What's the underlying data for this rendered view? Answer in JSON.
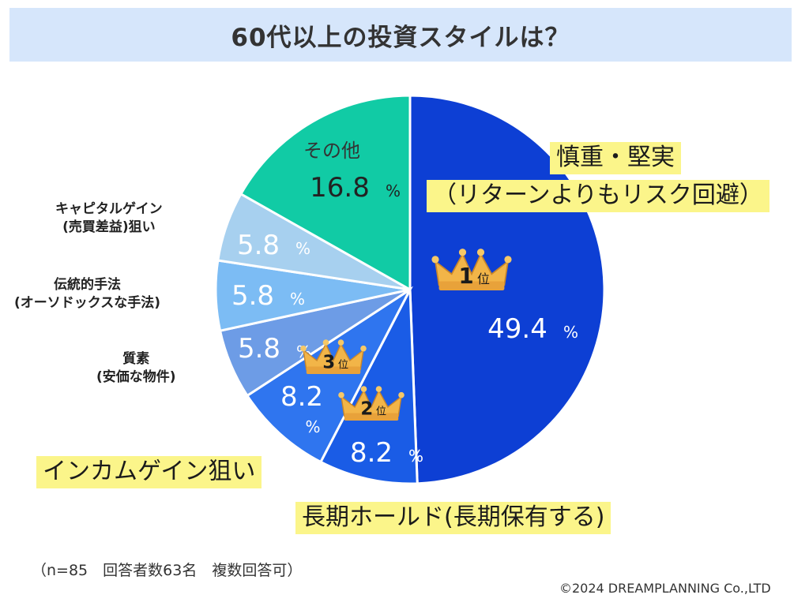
{
  "title": "60代以上の投資スタイルは？",
  "chart_data": {
    "type": "pie",
    "title": "60代以上の投資スタイルは？",
    "unit": "%",
    "slices": [
      {
        "label": "慎重・堅実（リターンよりもリスク回避）",
        "value": 49.4,
        "value_text": "49.4",
        "color": "#0d3fd4",
        "rank": "1"
      },
      {
        "label": "長期ホールド(長期保有する)",
        "value": 8.2,
        "value_text": "8.2",
        "color": "#1a5ce6",
        "rank": "2"
      },
      {
        "label": "インカムゲイン狙い",
        "value": 8.2,
        "value_text": "8.2",
        "color": "#2f75ef",
        "rank": "3"
      },
      {
        "label": "質素(安価な物件)",
        "value": 5.8,
        "value_text": "5.8",
        "color": "#6d9ce6"
      },
      {
        "label": "伝統的手法(オーソドックスな手法)",
        "value": 5.8,
        "value_text": "5.8",
        "color": "#7cbcf4"
      },
      {
        "label": "キャピタルゲイン(売買差益)狙い",
        "value": 5.8,
        "value_text": "5.8",
        "color": "#a7d0ef"
      },
      {
        "label": "その他",
        "value": 16.8,
        "value_text": "16.8",
        "color": "#11cba5"
      }
    ],
    "rank_suffix": "位"
  },
  "labels": {
    "cautious_line1": "慎重・堅実",
    "cautious_line2": "（リターンよりもリスク回避）",
    "longterm": "長期ホールド(長期保有する)",
    "income": "インカムゲイン狙い",
    "frugal_line1": "質素",
    "frugal_line2": "(安価な物件)",
    "traditional_line1": "伝統的手法",
    "traditional_line2": "(オーソドックスな手法)",
    "capital_line1": "キャピタルゲイン",
    "capital_line2": "(売買差益)狙い",
    "other": "その他"
  },
  "note": "（n=85　回答者数63名　複数回答可）",
  "copyright": "©2024 DREAMPLANNING Co.,LTD"
}
